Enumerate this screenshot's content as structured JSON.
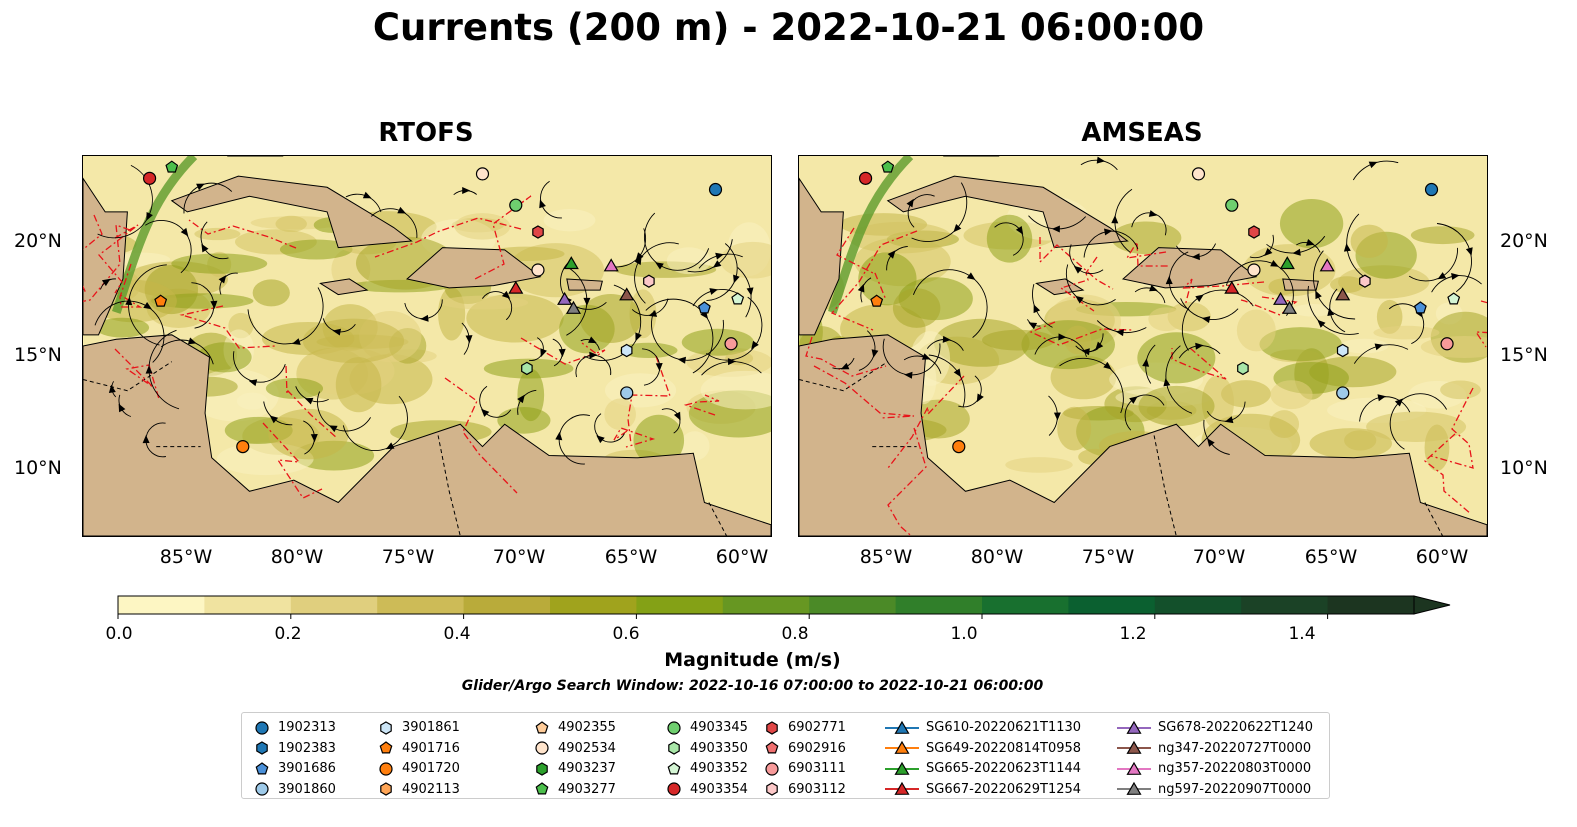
{
  "title": "Currents (200 m) - 2022-10-21 06:00:00",
  "panels": [
    {
      "title": "RTOFS"
    },
    {
      "title": "AMSEAS"
    }
  ],
  "lat_labels": [
    "20°N",
    "15°N",
    "10°N"
  ],
  "lon_labels": [
    "85°W",
    "80°W",
    "75°W",
    "70°W",
    "65°W",
    "60°W"
  ],
  "colorbar": {
    "label": "Magnitude (m/s)",
    "ticks": [
      "0.0",
      "0.2",
      "0.4",
      "0.6",
      "0.8",
      "1.0",
      "1.2",
      "1.4"
    ],
    "range": [
      0,
      1.5
    ],
    "extend": "max",
    "colors": [
      "#fdf6c3",
      "#f0e3a0",
      "#e0cf7e",
      "#cdbb57",
      "#b9ab3a",
      "#a0a31d",
      "#84a116",
      "#679722",
      "#4b8a27",
      "#307f2a",
      "#18702f",
      "#0b6030",
      "#13502b",
      "#1b4226",
      "#1c3520"
    ]
  },
  "search_window": "Glider/Argo Search Window: 2022-10-16 07:00:00 to 2022-10-21 06:00:00",
  "legend": [
    {
      "label": "1902313",
      "marker": "circle",
      "color": "#1f77b4"
    },
    {
      "label": "1902383",
      "marker": "hexagon",
      "color": "#1f77b4"
    },
    {
      "label": "3901686",
      "marker": "pentagon",
      "color": "#4a90d9"
    },
    {
      "label": "3901860",
      "marker": "circle",
      "color": "#9ecae9"
    },
    {
      "label": "3901861",
      "marker": "hexagon",
      "color": "#cde6f7"
    },
    {
      "label": "4901716",
      "marker": "pentagon",
      "color": "#ff7f0e"
    },
    {
      "label": "4901720",
      "marker": "circle",
      "color": "#ff7f0e"
    },
    {
      "label": "4902113",
      "marker": "hexagon",
      "color": "#ffa556"
    },
    {
      "label": "4902355",
      "marker": "pentagon",
      "color": "#ffcc99"
    },
    {
      "label": "4902534",
      "marker": "circle",
      "color": "#ffe4cc"
    },
    {
      "label": "4903237",
      "marker": "hexagon",
      "color": "#2ca02c"
    },
    {
      "label": "4903277",
      "marker": "pentagon",
      "color": "#4cbf4c"
    },
    {
      "label": "4903345",
      "marker": "circle",
      "color": "#6fcf6f"
    },
    {
      "label": "4903350",
      "marker": "hexagon",
      "color": "#a8e6a8"
    },
    {
      "label": "4903352",
      "marker": "pentagon",
      "color": "#d4f5d4"
    },
    {
      "label": "4903354",
      "marker": "circle",
      "color": "#d62728"
    },
    {
      "label": "6902771",
      "marker": "hexagon",
      "color": "#e04646"
    },
    {
      "label": "6902916",
      "marker": "pentagon",
      "color": "#f07070"
    },
    {
      "label": "6903111",
      "marker": "circle",
      "color": "#f79a9a"
    },
    {
      "label": "6903112",
      "marker": "hexagon",
      "color": "#fcc8c8"
    },
    {
      "label": "SG610-20220621T1130",
      "marker": "triangle",
      "color": "#1f77b4"
    },
    {
      "label": "SG649-20220814T0958",
      "marker": "triangle",
      "color": "#ff7f0e"
    },
    {
      "label": "SG665-20220623T1144",
      "marker": "triangle",
      "color": "#2ca02c"
    },
    {
      "label": "SG667-20220629T1254",
      "marker": "triangle",
      "color": "#d62728"
    },
    {
      "label": "SG678-20220622T1240",
      "marker": "triangle",
      "color": "#9467bd"
    },
    {
      "label": "ng347-20220727T0000",
      "marker": "triangle",
      "color": "#8c564b"
    },
    {
      "label": "ng357-20220803T0000",
      "marker": "triangle",
      "color": "#e377c2"
    },
    {
      "label": "ng597-20220907T0000",
      "marker": "triangle",
      "color": "#7f7f7f"
    }
  ],
  "map_extent": {
    "lon": [
      -89,
      -58
    ],
    "lat": [
      7,
      24
    ]
  },
  "markers": [
    {
      "label": "1902313",
      "lon": -60.5,
      "lat": 22.5
    },
    {
      "label": "4903354",
      "lon": -86.0,
      "lat": 23.0
    },
    {
      "label": "4903277",
      "lon": -85.0,
      "lat": 23.5
    },
    {
      "label": "4902534",
      "lon": -71.0,
      "lat": 23.2
    },
    {
      "label": "4903345",
      "lon": -69.5,
      "lat": 21.8
    },
    {
      "label": "6902771",
      "lon": -68.5,
      "lat": 20.6
    },
    {
      "label": "4902534",
      "lon": -68.5,
      "lat": 18.9
    },
    {
      "label": "4901716",
      "lon": -85.5,
      "lat": 17.5
    },
    {
      "label": "4901720",
      "lon": -81.8,
      "lat": 11.0
    },
    {
      "label": "3901686",
      "lon": -61.0,
      "lat": 17.2
    },
    {
      "label": "4903352",
      "lon": -59.5,
      "lat": 17.6
    },
    {
      "label": "6903111",
      "lon": -59.8,
      "lat": 15.6
    },
    {
      "label": "3901860",
      "lon": -64.5,
      "lat": 13.4
    },
    {
      "label": "3901861",
      "lon": -64.5,
      "lat": 15.3
    },
    {
      "label": "4903350",
      "lon": -69.0,
      "lat": 14.5
    },
    {
      "label": "6903112",
      "lon": -63.5,
      "lat": 18.4
    },
    {
      "label": "SG667-20220629T1254",
      "lon": -69.5,
      "lat": 18.1
    },
    {
      "label": "SG665-20220623T1144",
      "lon": -67.0,
      "lat": 19.2
    },
    {
      "label": "SG678-20220622T1240",
      "lon": -67.3,
      "lat": 17.6
    },
    {
      "label": "ng597-20220907T0000",
      "lon": -66.9,
      "lat": 17.2
    },
    {
      "label": "ng347-20220727T0000",
      "lon": -64.5,
      "lat": 17.8
    },
    {
      "label": "ng357-20220803T0000",
      "lon": -65.2,
      "lat": 19.1
    }
  ]
}
